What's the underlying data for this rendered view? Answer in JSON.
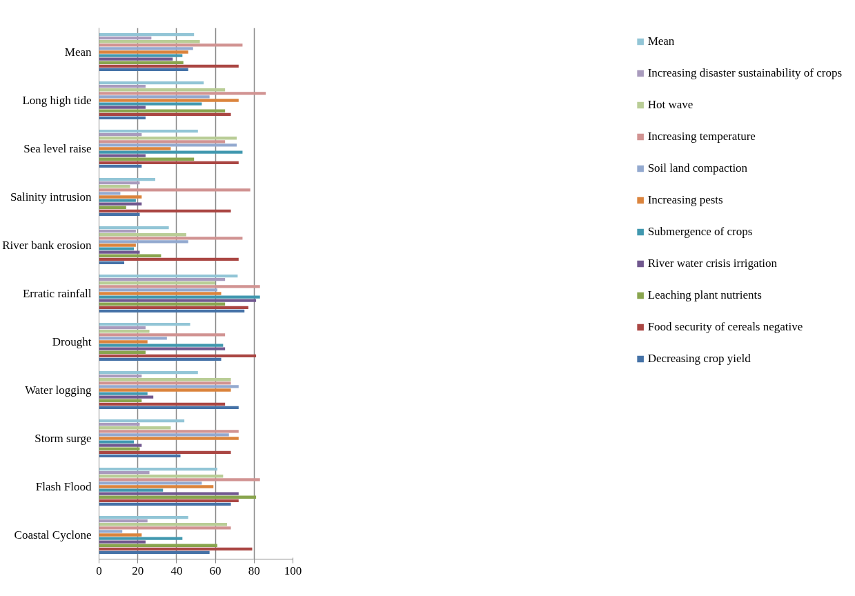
{
  "chart_data": {
    "type": "bar",
    "orientation": "horizontal",
    "categories": [
      "Mean",
      "Long high tide",
      "Sea level raise",
      "Salinity intrusion",
      "River bank erosion",
      "Erratic rainfall",
      "Drought",
      "Water logging",
      "Storm surge",
      "Flash Flood",
      "Coastal Cyclone"
    ],
    "series": [
      {
        "name": "Mean",
        "color": "#92c5d6",
        "values": [
          49,
          54,
          51,
          29,
          36,
          71.5,
          47,
          51,
          44,
          61,
          46
        ]
      },
      {
        "name": "Increasing disaster sustainability of crops",
        "color": "#a99bbd",
        "values": [
          27,
          24,
          22,
          21,
          19,
          65,
          24,
          22,
          21,
          26,
          25
        ]
      },
      {
        "name": "Hot wave",
        "color": "#b9cd96",
        "values": [
          52,
          65,
          71,
          16,
          45,
          60,
          26,
          68,
          37,
          64,
          66
        ]
      },
      {
        "name": "Increasing temperature",
        "color": "#d19392",
        "values": [
          74,
          86,
          65,
          78,
          74,
          83,
          65,
          68,
          72,
          83,
          68
        ]
      },
      {
        "name": "Soil land compaction",
        "color": "#93a9cf",
        "values": [
          48.5,
          57,
          71,
          11,
          46,
          61,
          35,
          72,
          67,
          53,
          12
        ]
      },
      {
        "name": "Increasing pests",
        "color": "#db843d",
        "values": [
          46,
          72,
          37,
          22,
          19,
          63,
          25,
          68,
          72,
          59,
          22
        ]
      },
      {
        "name": "Submergence of crops",
        "color": "#4198af",
        "values": [
          43,
          53,
          74,
          19,
          18,
          83,
          64,
          25,
          18,
          33,
          43
        ]
      },
      {
        "name": "River water crisis irrigation",
        "color": "#71588f",
        "values": [
          38,
          24,
          24,
          22,
          21,
          81,
          65,
          28,
          22,
          72,
          24
        ]
      },
      {
        "name": "Leaching plant nutrients",
        "color": "#89a54e",
        "values": [
          43.5,
          65,
          49,
          14,
          32,
          65,
          24,
          22,
          21,
          81,
          61
        ]
      },
      {
        "name": "Food security of cereals negative",
        "color": "#aa4643",
        "values": [
          72,
          68,
          72,
          68,
          72,
          77,
          81,
          65,
          68,
          72,
          79
        ]
      },
      {
        "name": "Decreasing crop yield",
        "color": "#4572a7",
        "values": [
          46,
          24,
          22,
          21,
          13,
          75,
          63,
          72,
          42,
          68,
          57
        ]
      }
    ],
    "xlim": [
      0,
      100
    ],
    "xticks": [
      0,
      20,
      40,
      60,
      80,
      100
    ],
    "grid": "x",
    "legend": "right"
  }
}
